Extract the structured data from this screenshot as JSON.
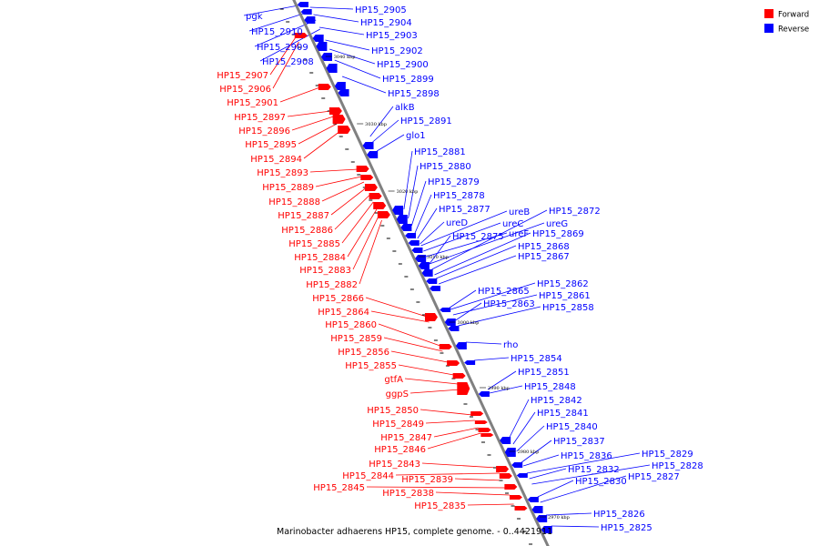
{
  "caption": "Marinobacter adhaerens HP15, complete genome. - 0..4421911",
  "legend": [
    {
      "label": "Forward",
      "color": "#ff0000"
    },
    {
      "label": "Reverse",
      "color": "#0000ff"
    }
  ],
  "ticks": [
    "3040 kbp",
    "3030 kbp",
    "3020 kbp",
    "3010 kbp",
    "3000 kbp",
    "2990 kbp",
    "2980 kbp",
    "2970 kbp"
  ],
  "reverse_labels": [
    "pgk",
    "HP15_2910",
    "HP15_2909",
    "HP15_2908",
    "HP15_2905",
    "HP15_2904",
    "HP15_2903",
    "HP15_2902",
    "HP15_2900",
    "HP15_2899",
    "HP15_2898",
    "alkB",
    "HP15_2891",
    "glo1",
    "HP15_2881",
    "HP15_2880",
    "HP15_2879",
    "HP15_2878",
    "HP15_2877",
    "ureD",
    "ureB",
    "ureC",
    "ureF",
    "ureG",
    "HP15_2872",
    "HP15_2869",
    "HP15_2875",
    "HP15_2868",
    "HP15_2867",
    "HP15_2865",
    "HP15_2862",
    "HP15_2861",
    "HP15_2863",
    "HP15_2858",
    "rho",
    "HP15_2854",
    "HP15_2851",
    "HP15_2848",
    "HP15_2842",
    "HP15_2841",
    "HP15_2840",
    "HP15_2837",
    "HP15_2836",
    "HP15_2829",
    "HP15_2832",
    "HP15_2828",
    "HP15_2830",
    "HP15_2827",
    "HP15_2826",
    "HP15_2825"
  ],
  "forward_labels": [
    "HP15_2907",
    "HP15_2906",
    "HP15_2901",
    "HP15_2897",
    "HP15_2896",
    "HP15_2895",
    "HP15_2894",
    "HP15_2893",
    "HP15_2889",
    "HP15_2888",
    "HP15_2887",
    "HP15_2886",
    "HP15_2885",
    "HP15_2884",
    "HP15_2883",
    "HP15_2882",
    "HP15_2866",
    "HP15_2864",
    "HP15_2860",
    "HP15_2859",
    "HP15_2856",
    "HP15_2855",
    "gtfA",
    "ggpS",
    "HP15_2850",
    "HP15_2849",
    "HP15_2847",
    "HP15_2846",
    "HP15_2843",
    "HP15_2844",
    "HP15_2839",
    "HP15_2845",
    "HP15_2838",
    "HP15_2835"
  ]
}
